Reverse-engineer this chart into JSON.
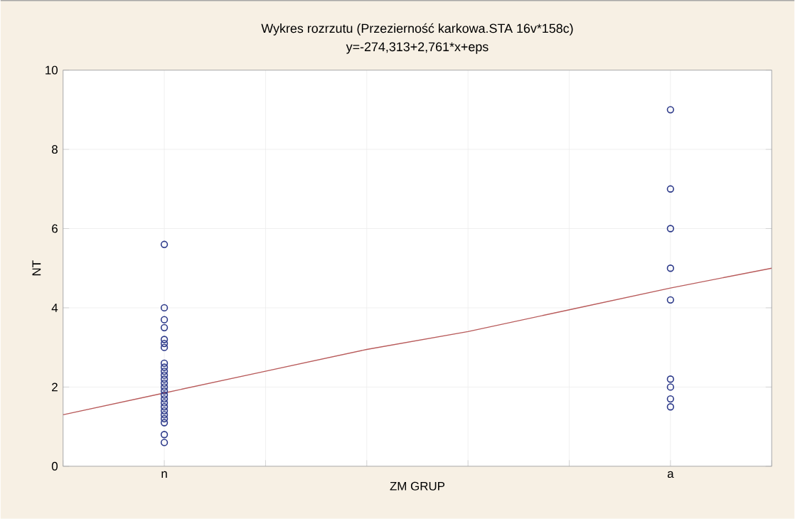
{
  "chart_data": {
    "type": "scatter",
    "title": "Wykres rozrzutu (Przezierność karkowa.STA 16v*158c)",
    "subtitle": "y=-274,313+2,761*x+eps",
    "xlabel": "ZM  GRUP",
    "ylabel": "NT",
    "categories": [
      null,
      "n",
      null,
      null,
      null,
      null,
      "a",
      null
    ],
    "ylim": [
      0,
      10
    ],
    "yticks": [
      0,
      2,
      4,
      6,
      8,
      10
    ],
    "grid": true,
    "marker": "circle",
    "series": [
      {
        "color": "#2d3a8a",
        "x": [
          "n",
          "n",
          "n",
          "n",
          "n",
          "n",
          "n",
          "n",
          "n",
          "n",
          "n",
          "n",
          "n",
          "n",
          "n",
          "n",
          "n",
          "n",
          "n",
          "n",
          "n",
          "n",
          "n",
          "n",
          "n",
          "a",
          "a",
          "a",
          "a",
          "a",
          "a",
          "a",
          "a",
          "a"
        ],
        "values": [
          5.6,
          4.0,
          3.7,
          3.5,
          3.2,
          3.1,
          3.0,
          2.6,
          2.5,
          2.4,
          2.3,
          2.2,
          2.1,
          2.0,
          1.9,
          1.8,
          1.7,
          1.6,
          1.5,
          1.4,
          1.3,
          1.2,
          1.1,
          0.8,
          0.6,
          9.0,
          7.0,
          6.0,
          5.0,
          4.2,
          2.2,
          2.0,
          1.7,
          1.5
        ]
      },
      {
        "type": "line",
        "color": "#b85a5a",
        "marker": "none",
        "line_style": "solid",
        "values": [
          1.3,
          1.85,
          2.4,
          2.95,
          3.4,
          3.95,
          4.5,
          5.0
        ]
      }
    ]
  }
}
